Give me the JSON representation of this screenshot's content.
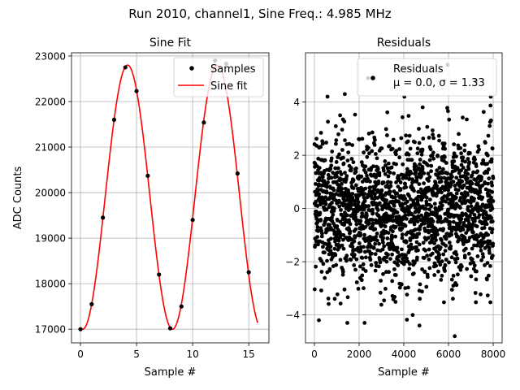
{
  "figure": {
    "suptitle": "Run 2010, channel1, Sine Freq.: 4.985 MHz"
  },
  "colors": {
    "samples": "#000000",
    "fit": "#ff0000",
    "grid": "#b0b0b0"
  },
  "chart_data": [
    {
      "type": "scatter",
      "title": "Sine Fit",
      "xlabel": "Sample #",
      "ylabel": "ADC Counts",
      "xlim": [
        -0.8,
        16.8
      ],
      "ylim": [
        16700,
        23070
      ],
      "xticks": [
        0,
        5,
        10,
        15
      ],
      "yticks": [
        17000,
        18000,
        19000,
        20000,
        21000,
        22000,
        23000
      ],
      "grid": true,
      "legend_position": "top-right",
      "series": [
        {
          "name": "Samples",
          "kind": "points",
          "x": [
            0,
            1,
            2,
            3,
            4,
            5,
            6,
            7,
            8,
            9,
            10,
            11,
            12,
            13,
            14,
            15
          ],
          "y": [
            17000,
            17550,
            19450,
            21600,
            22750,
            22230,
            20370,
            18200,
            17020,
            17500,
            19400,
            21540,
            22900,
            22830,
            20420,
            18250
          ]
        },
        {
          "name": "Sine fit",
          "kind": "line",
          "model": {
            "amplitude": 2900,
            "offset": 19900,
            "period": 8.0,
            "peak_x": 4.2,
            "x_range": [
              0,
              15.8
            ]
          }
        }
      ]
    },
    {
      "type": "scatter",
      "title": "Residuals",
      "xlabel": "Sample #",
      "ylabel": "",
      "xlim": [
        -400,
        8400
      ],
      "ylim": [
        -5.05,
        5.85
      ],
      "xticks": [
        0,
        2000,
        4000,
        6000,
        8000
      ],
      "yticks": [
        -4,
        -2,
        0,
        2,
        4
      ],
      "grid": true,
      "legend_position": "top-right",
      "series": [
        {
          "name": "Residuals",
          "legend_extra": "μ = 0.0, σ = 1.33",
          "kind": "points",
          "n_points": 8000,
          "x_range": [
            0,
            7999
          ],
          "mean": 0.0,
          "std": 1.33,
          "notable_points": [
            [
              1360,
              4.3
            ],
            [
              2400,
              4.9
            ],
            [
              5960,
              5.4
            ],
            [
              6280,
              -4.8
            ],
            [
              200,
              -4.2
            ],
            [
              4700,
              -4.4
            ],
            [
              7230,
              4.8
            ]
          ]
        }
      ]
    }
  ]
}
